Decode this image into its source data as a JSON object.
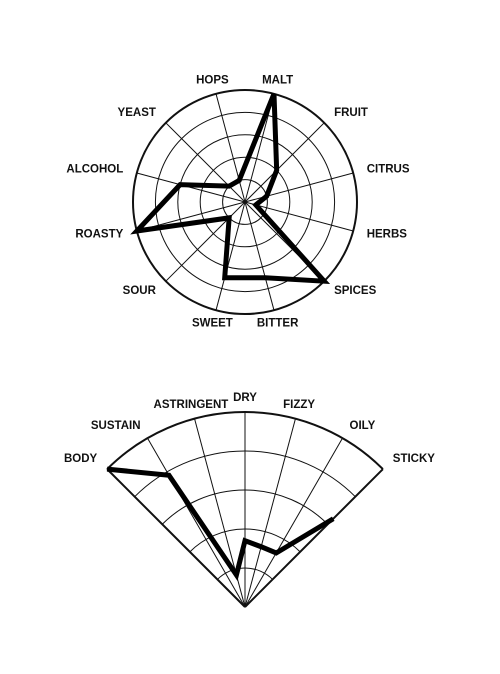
{
  "chart_data": [
    {
      "type": "radar",
      "categories": [
        "MALT",
        "FRUIT",
        "CITRUS",
        "HERBS",
        "SPICES",
        "BITTER",
        "SWEET",
        "SOUR",
        "ROASTY",
        "ALCOHOL",
        "YEAST",
        "HOPS"
      ],
      "values": [
        5,
        2,
        1,
        0.5,
        5,
        3.5,
        3.5,
        1,
        5,
        3,
        1,
        1
      ],
      "color": "#000000",
      "rlim": [
        0,
        5
      ],
      "rticks": [
        1,
        2,
        3,
        4,
        5
      ]
    },
    {
      "type": "radar-fan",
      "categories": [
        "BODY",
        "SUSTAIN",
        "ASTRINGENT",
        "DRY",
        "FIZZY",
        "OILY",
        "STICKY"
      ],
      "values": [
        5,
        3.9,
        0.85,
        1.7,
        1.6,
        1.6,
        3.2
      ],
      "color": "#000000",
      "rlim": [
        0,
        5
      ],
      "rticks": [
        1,
        2,
        3,
        4,
        5
      ]
    }
  ]
}
